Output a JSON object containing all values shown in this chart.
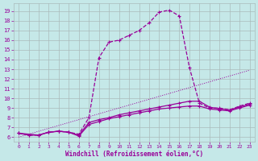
{
  "xlabel": "Windchill (Refroidissement éolien,°C)",
  "bg_color": "#c5e8e8",
  "line_color": "#990099",
  "grid_color": "#aabbbb",
  "ylim": [
    5.5,
    19.8
  ],
  "xlim": [
    -0.5,
    23.5
  ],
  "yticks": [
    6,
    7,
    8,
    9,
    10,
    11,
    12,
    13,
    14,
    15,
    16,
    17,
    18,
    19
  ],
  "xticks": [
    0,
    1,
    2,
    3,
    4,
    5,
    6,
    7,
    8,
    9,
    10,
    11,
    12,
    13,
    14,
    15,
    16,
    17,
    18,
    19,
    20,
    21,
    22,
    23
  ],
  "line_dotted_x": [
    0,
    1,
    2,
    3,
    4,
    5,
    6,
    7,
    8,
    9,
    10,
    11,
    12,
    13,
    14,
    15,
    16,
    17,
    18,
    19,
    20,
    21,
    22,
    23
  ],
  "line_dotted_y": [
    6.0,
    6.3,
    6.6,
    6.9,
    7.2,
    7.5,
    7.8,
    8.1,
    8.4,
    8.7,
    9.0,
    9.3,
    9.6,
    9.9,
    10.2,
    10.5,
    10.8,
    11.1,
    11.4,
    11.7,
    12.0,
    12.3,
    12.6,
    12.9
  ],
  "line_peak_x": [
    0,
    1,
    2,
    3,
    4,
    5,
    6,
    7,
    8,
    9,
    10,
    11,
    12,
    13,
    14,
    15,
    16,
    17,
    18,
    19,
    20,
    21,
    22,
    23
  ],
  "line_peak_y": [
    6.4,
    6.2,
    6.2,
    6.5,
    6.6,
    6.5,
    6.3,
    8.0,
    14.2,
    15.8,
    16.0,
    16.5,
    17.0,
    17.8,
    18.9,
    19.1,
    18.5,
    13.2,
    9.5,
    9.0,
    9.0,
    8.8,
    9.2,
    9.5
  ],
  "line_mid_x": [
    0,
    2,
    3,
    4,
    5,
    6,
    7,
    8,
    9,
    10,
    11,
    12,
    13,
    14,
    15,
    16,
    17,
    18,
    19,
    20,
    21,
    22,
    23
  ],
  "line_mid_y": [
    6.4,
    6.2,
    6.5,
    6.6,
    6.5,
    6.2,
    7.5,
    7.8,
    8.0,
    8.3,
    8.5,
    8.7,
    8.9,
    9.1,
    9.3,
    9.5,
    9.7,
    9.7,
    9.1,
    8.9,
    8.8,
    9.1,
    9.4
  ],
  "line_low_x": [
    0,
    1,
    2,
    3,
    4,
    5,
    6,
    7,
    8,
    9,
    10,
    11,
    12,
    13,
    14,
    15,
    16,
    17,
    18,
    19,
    20,
    21,
    22,
    23
  ],
  "line_low_y": [
    6.4,
    6.2,
    6.2,
    6.5,
    6.6,
    6.5,
    6.1,
    7.3,
    7.6,
    7.9,
    8.1,
    8.3,
    8.5,
    8.7,
    8.9,
    9.0,
    9.1,
    9.2,
    9.2,
    8.9,
    8.8,
    8.7,
    9.0,
    9.3
  ]
}
